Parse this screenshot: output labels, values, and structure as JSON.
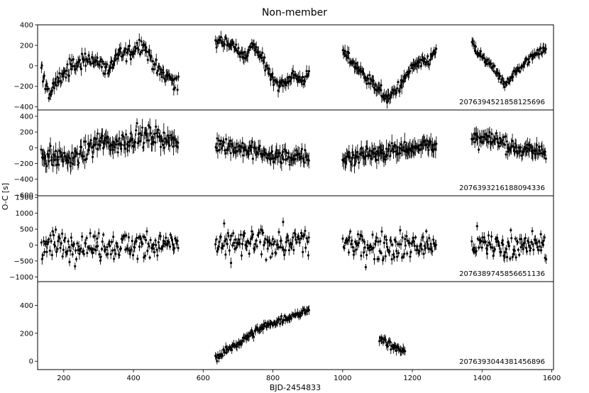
{
  "figure": {
    "title": "Non-member",
    "xlabel": "BJD-2454833",
    "ylabel": "O-C [s]"
  },
  "chart_data": {
    "type": "scatter",
    "title": "Non-member",
    "xlabel": "BJD-2454833",
    "ylabel": "O-C [s]",
    "xlim": [
      125,
      1605
    ],
    "x_ticks": [
      200,
      400,
      600,
      800,
      1000,
      1200,
      1400,
      1600
    ],
    "shared_x": true,
    "error_bars": true,
    "marker_color": "#000000",
    "panels": [
      {
        "name": "2076394521858125696",
        "ylim": [
          -430,
          400
        ],
        "y_ticks": [
          -400,
          -200,
          0,
          200,
          400
        ],
        "segments": [
          {
            "x_range": [
              135,
              530
            ],
            "trend": [
              [
                135,
                -50
              ],
              [
                160,
                -280
              ],
              [
                180,
                -150
              ],
              [
                210,
                -40
              ],
              [
                250,
                40
              ],
              [
                270,
                80
              ],
              [
                300,
                30
              ],
              [
                330,
                -40
              ],
              [
                360,
                120
              ],
              [
                390,
                130
              ],
              [
                415,
                200
              ],
              [
                430,
                200
              ],
              [
                450,
                80
              ],
              [
                470,
                -50
              ],
              [
                500,
                -100
              ],
              [
                530,
                -180
              ]
            ],
            "scatter": 70,
            "err": 45
          },
          {
            "x_range": [
              635,
              905
            ],
            "trend": [
              [
                635,
                220
              ],
              [
                660,
                240
              ],
              [
                690,
                190
              ],
              [
                720,
                80
              ],
              [
                740,
                200
              ],
              [
                760,
                120
              ],
              [
                790,
                -60
              ],
              [
                815,
                -180
              ],
              [
                840,
                -150
              ],
              [
                860,
                -80
              ],
              [
                880,
                -150
              ],
              [
                905,
                -90
              ]
            ],
            "scatter": 50,
            "err": 45
          },
          {
            "x_range": [
              1000,
              1270
            ],
            "trend": [
              [
                1000,
                150
              ],
              [
                1030,
                30
              ],
              [
                1060,
                -80
              ],
              [
                1100,
                -220
              ],
              [
                1130,
                -320
              ],
              [
                1150,
                -250
              ],
              [
                1180,
                -120
              ],
              [
                1210,
                20
              ],
              [
                1240,
                30
              ],
              [
                1270,
                150
              ]
            ],
            "scatter": 50,
            "err": 45
          },
          {
            "x_range": [
              1370,
              1585
            ],
            "trend": [
              [
                1370,
                250
              ],
              [
                1385,
                130
              ],
              [
                1420,
                30
              ],
              [
                1450,
                -120
              ],
              [
                1465,
                -180
              ],
              [
                1500,
                -50
              ],
              [
                1540,
                80
              ],
              [
                1560,
                150
              ],
              [
                1585,
                160
              ]
            ],
            "scatter": 40,
            "err": 35
          }
        ]
      },
      {
        "name": "2076393216188094336",
        "ylim": [
          -610,
          480
        ],
        "y_ticks": [
          -600,
          -400,
          -200,
          0,
          200,
          400
        ],
        "segments": [
          {
            "x_range": [
              135,
              530
            ],
            "trend": [
              [
                135,
                -80
              ],
              [
                200,
                -150
              ],
              [
                250,
                -100
              ],
              [
                300,
                80
              ],
              [
                350,
                40
              ],
              [
                400,
                130
              ],
              [
                450,
                150
              ],
              [
                500,
                120
              ],
              [
                530,
                20
              ]
            ],
            "scatter": 110,
            "err": 80
          },
          {
            "x_range": [
              635,
              905
            ],
            "trend": [
              [
                635,
                50
              ],
              [
                700,
                0
              ],
              [
                750,
                -50
              ],
              [
                800,
                -100
              ],
              [
                850,
                -120
              ],
              [
                905,
                -120
              ]
            ],
            "scatter": 90,
            "err": 70
          },
          {
            "x_range": [
              1000,
              1270
            ],
            "trend": [
              [
                1000,
                -150
              ],
              [
                1050,
                -80
              ],
              [
                1100,
                -60
              ],
              [
                1150,
                -30
              ],
              [
                1200,
                10
              ],
              [
                1270,
                60
              ]
            ],
            "scatter": 90,
            "err": 80
          },
          {
            "x_range": [
              1370,
              1585
            ],
            "trend": [
              [
                1370,
                80
              ],
              [
                1420,
                120
              ],
              [
                1470,
                30
              ],
              [
                1520,
                -20
              ],
              [
                1585,
                -50
              ]
            ],
            "scatter": 90,
            "err": 70
          }
        ]
      },
      {
        "name": "2076389745856651136",
        "ylim": [
          -1150,
          1550
        ],
        "y_ticks": [
          -1000,
          -500,
          0,
          500,
          1000,
          1500
        ],
        "segments": [
          {
            "x_range": [
              135,
              530
            ],
            "trend": [
              [
                135,
                0
              ],
              [
                530,
                0
              ]
            ],
            "scatter": 400,
            "err": 120
          },
          {
            "x_range": [
              635,
              905
            ],
            "trend": [
              [
                635,
                0
              ],
              [
                905,
                100
              ]
            ],
            "scatter": 400,
            "err": 120
          },
          {
            "x_range": [
              1000,
              1270
            ],
            "trend": [
              [
                1000,
                0
              ],
              [
                1270,
                0
              ]
            ],
            "scatter": 400,
            "err": 120
          },
          {
            "x_range": [
              1370,
              1585
            ],
            "trend": [
              [
                1370,
                0
              ],
              [
                1585,
                0
              ]
            ],
            "scatter": 380,
            "err": 120
          }
        ]
      },
      {
        "name": "2076393044381456896",
        "ylim": [
          -60,
          570
        ],
        "y_ticks": [
          0,
          200,
          400
        ],
        "segments": [
          {
            "x_range": [
              635,
              905
            ],
            "trend": [
              [
                635,
                20
              ],
              [
                700,
                130
              ],
              [
                760,
                230
              ],
              [
                820,
                290
              ],
              [
                870,
                340
              ],
              [
                905,
                360
              ]
            ],
            "scatter": 25,
            "err": 25
          },
          {
            "x_range": [
              1105,
              1180
            ],
            "trend": [
              [
                1105,
                180
              ],
              [
                1140,
                110
              ],
              [
                1180,
                70
              ]
            ],
            "scatter": 25,
            "err": 25
          }
        ]
      }
    ]
  }
}
